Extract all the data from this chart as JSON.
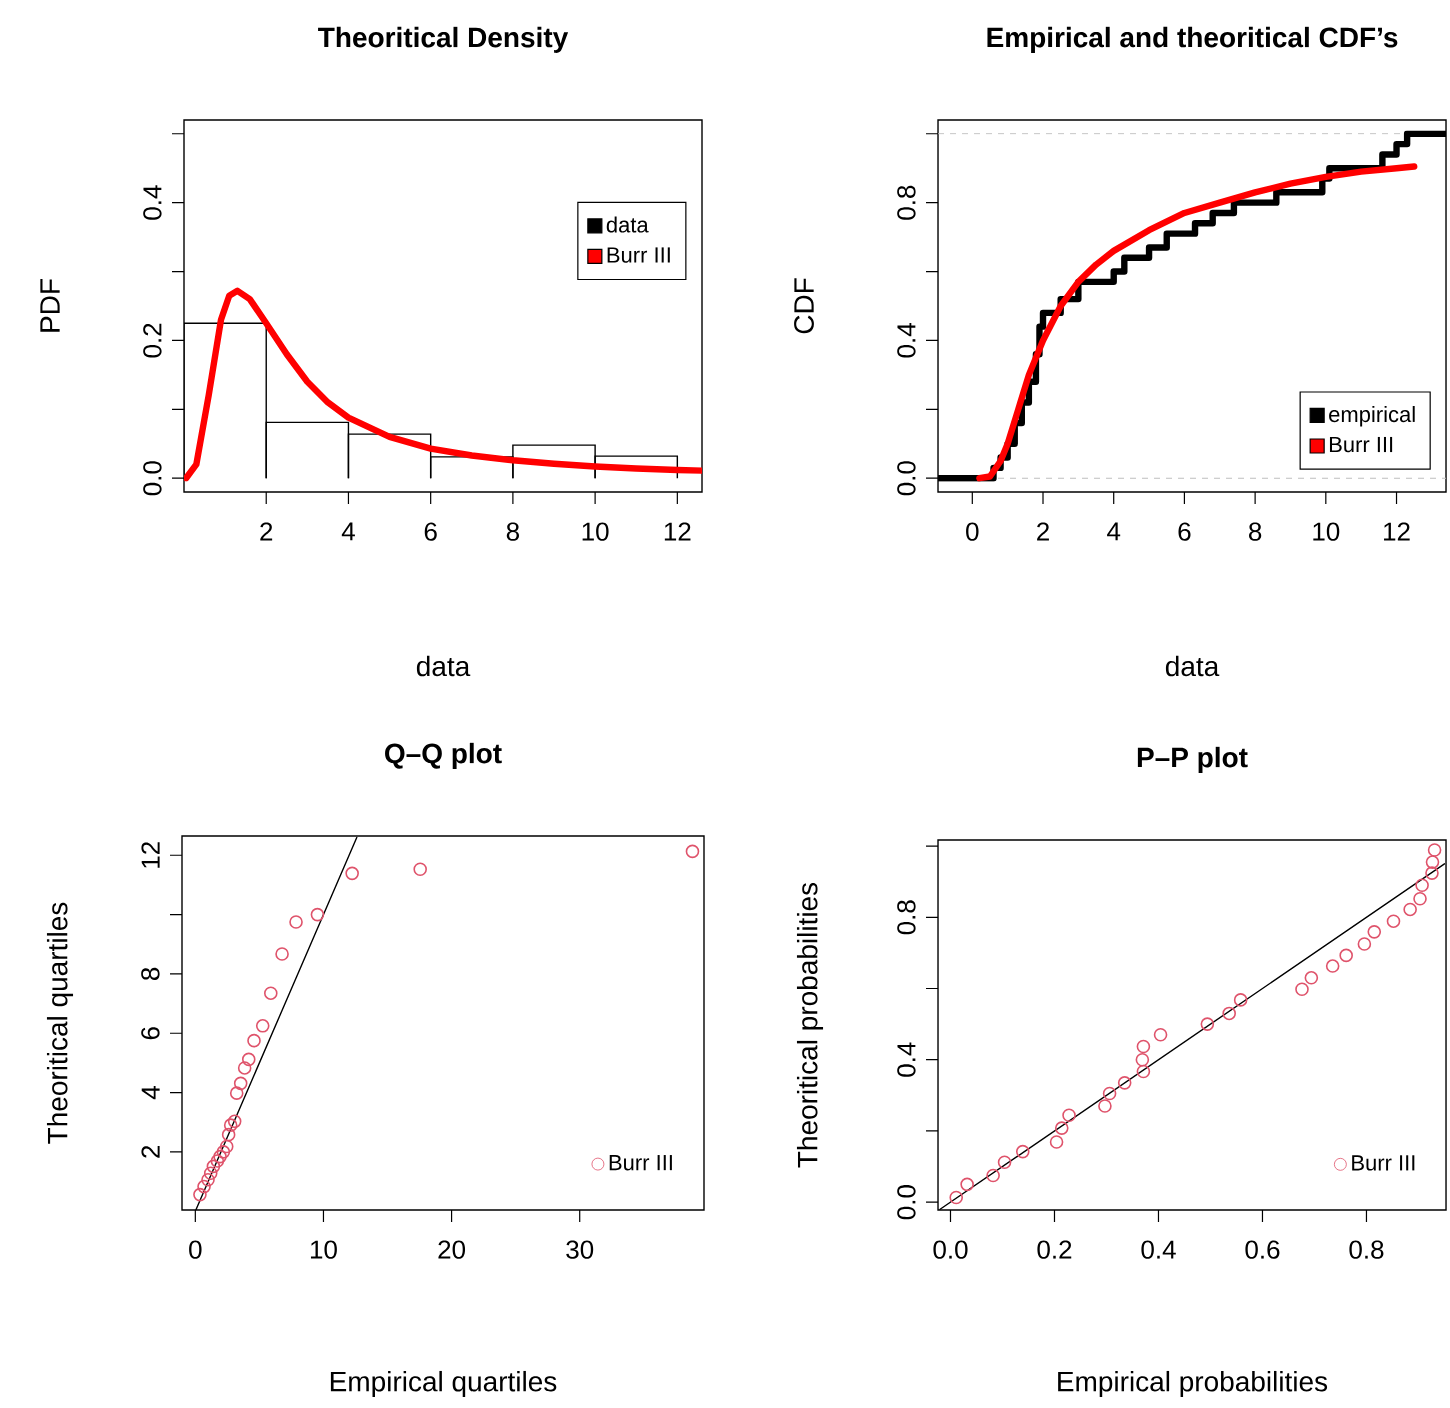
{
  "chart_data": [
    {
      "type": "histogram",
      "title": "Theoritical Density",
      "xlabel": "data",
      "ylabel": "PDF",
      "xlim": [
        0,
        12.6
      ],
      "ylim": [
        -0.02,
        0.52
      ],
      "xticks": [
        2,
        4,
        6,
        8,
        10,
        12
      ],
      "yticks": [
        {
          "value": 0,
          "label": "0.0"
        },
        {
          "value": 0.1,
          "label": null
        },
        0.2,
        {
          "value": 0.3,
          "label": null
        },
        0.4,
        {
          "value": 0.5,
          "label": null
        }
      ],
      "legend": "top right",
      "series": [
        {
          "name": "data",
          "type": "histogram",
          "color": "#000000",
          "bins": [
            0,
            2,
            4,
            6,
            8,
            10,
            12
          ],
          "values": [
            0.225,
            0.081,
            0.064,
            0.031,
            0.048,
            0.032
          ]
        },
        {
          "name": "Burr III",
          "type": "line",
          "color": "#ff0000",
          "x": [
            0.05,
            0.3,
            0.6,
            0.9,
            1.1,
            1.3,
            1.6,
            2,
            2.5,
            3,
            3.5,
            4,
            5,
            6,
            7,
            8,
            9,
            10,
            11,
            12,
            12.6
          ],
          "values": [
            0,
            0.02,
            0.12,
            0.23,
            0.265,
            0.272,
            0.26,
            0.225,
            0.18,
            0.14,
            0.11,
            0.088,
            0.06,
            0.043,
            0.033,
            0.026,
            0.021,
            0.017,
            0.014,
            0.012,
            0.011
          ]
        }
      ]
    },
    {
      "type": "step",
      "title": "Empirical and theoritical CDF’s",
      "xlabel": "data",
      "ylabel": "CDF",
      "xlim": [
        -0.97,
        13.4
      ],
      "ylim": [
        -0.04,
        1.04
      ],
      "xticks": [
        0,
        2,
        4,
        6,
        8,
        10,
        12
      ],
      "yticks": [
        {
          "value": 0,
          "label": "0.0"
        },
        {
          "value": 0.2,
          "label": null
        },
        0.4,
        {
          "value": 0.6,
          "label": null
        },
        0.8,
        {
          "value": 1,
          "label": null
        }
      ],
      "legend": "bottom right",
      "ref_lines": [
        {
          "axis": "y",
          "value": 0,
          "color": "#bebebe",
          "line_style": "dashed"
        },
        {
          "axis": "y",
          "value": 1,
          "color": "#bebebe",
          "line_style": "dashed"
        }
      ],
      "series": [
        {
          "name": "empirical",
          "type": "step",
          "color": "#000000",
          "x": [
            -0.97,
            0.5,
            0.6,
            0.8,
            1.0,
            1.2,
            1.4,
            1.6,
            1.8,
            1.9,
            2.0,
            2.5,
            3.0,
            4.0,
            4.3,
            5.0,
            5.5,
            6.3,
            6.8,
            7.4,
            8.6,
            9.9,
            10.1,
            11.5,
            11.6,
            12.0,
            12.3,
            13.4
          ],
          "values": [
            0,
            0,
            0.03,
            0.06,
            0.1,
            0.16,
            0.22,
            0.28,
            0.36,
            0.44,
            0.48,
            0.52,
            0.57,
            0.6,
            0.64,
            0.67,
            0.71,
            0.74,
            0.77,
            0.8,
            0.83,
            0.87,
            0.9,
            0.9,
            0.94,
            0.97,
            1,
            1
          ]
        },
        {
          "name": "Burr III",
          "type": "line",
          "color": "#ff0000",
          "x": [
            0.2,
            0.5,
            0.8,
            1,
            1.3,
            1.6,
            2,
            2.5,
            3,
            3.5,
            4,
            5,
            6,
            7,
            8,
            9,
            10,
            11,
            12,
            12.5
          ],
          "values": [
            0,
            0.005,
            0.05,
            0.1,
            0.2,
            0.3,
            0.4,
            0.5,
            0.57,
            0.62,
            0.66,
            0.72,
            0.77,
            0.8,
            0.83,
            0.855,
            0.875,
            0.89,
            0.9,
            0.905
          ]
        }
      ]
    },
    {
      "type": "scatter",
      "title": "Q–Q plot",
      "xlabel": "Empirical quartiles",
      "ylabel": "Theoritical quartiles",
      "xlim": [
        -1.04,
        39.7
      ],
      "ylim": [
        0.04,
        12.65
      ],
      "xticks": [
        0,
        10,
        20,
        30
      ],
      "yticks": [
        2,
        4,
        6,
        8,
        {
          "value": 10,
          "label": null
        },
        12
      ],
      "legend": "bottom right",
      "marker": "circle",
      "series": [
        {
          "name": "Burr III",
          "color": "#df536b",
          "x": [
            38.8,
            17.55,
            12.24,
            9.53,
            7.86,
            6.77,
            5.89,
            5.26,
            4.58,
            4.17,
            3.85,
            3.54,
            3.23,
            3.07,
            2.76,
            2.6,
            2.45,
            2.19,
            1.93,
            1.72,
            1.41,
            1.2,
            0.99,
            0.68,
            0.36
          ],
          "values": [
            12.13,
            11.53,
            11.39,
            10.0,
            9.75,
            8.67,
            7.35,
            6.25,
            5.75,
            5.12,
            4.83,
            4.31,
            3.98,
            3.03,
            2.9,
            2.58,
            2.18,
            2.0,
            1.84,
            1.69,
            1.51,
            1.28,
            1.06,
            0.83,
            0.56
          ]
        },
        {
          "type": "line",
          "color": "#000000",
          "marker": "none",
          "x": [
            0.05,
            12.6
          ],
          "values": [
            0.05,
            12.6
          ]
        }
      ]
    },
    {
      "type": "scatter",
      "title": "P–P plot",
      "xlabel": "Empirical probabilities",
      "ylabel": "Theoritical probabilities",
      "xlim": [
        -0.024,
        0.953
      ],
      "ylim": [
        -0.022,
        1.017
      ],
      "xticks": [
        {
          "value": 0,
          "label": "0.0"
        },
        0.2,
        0.4,
        0.6,
        0.8
      ],
      "yticks": [
        {
          "value": 0,
          "label": "0.0"
        },
        {
          "value": 0.2,
          "label": null
        },
        0.4,
        {
          "value": 0.6,
          "label": null
        },
        0.8,
        {
          "value": 1,
          "label": null
        }
      ],
      "legend": "bottom right",
      "marker": "circle",
      "series": [
        {
          "name": "Burr III",
          "color": "#df536b",
          "x": [
            0.011,
            0.032,
            0.082,
            0.104,
            0.139,
            0.204,
            0.214,
            0.228,
            0.297,
            0.306,
            0.335,
            0.371,
            0.369,
            0.371,
            0.404,
            0.494,
            0.536,
            0.558,
            0.676,
            0.694,
            0.735,
            0.761,
            0.796,
            0.815,
            0.852,
            0.884,
            0.903,
            0.907,
            0.926,
            0.927,
            0.931
          ],
          "values": [
            0.013,
            0.05,
            0.075,
            0.112,
            0.142,
            0.169,
            0.208,
            0.244,
            0.27,
            0.305,
            0.335,
            0.367,
            0.4,
            0.437,
            0.47,
            0.5,
            0.53,
            0.568,
            0.598,
            0.63,
            0.663,
            0.693,
            0.725,
            0.759,
            0.789,
            0.822,
            0.852,
            0.89,
            0.924,
            0.955,
            0.989
          ]
        },
        {
          "type": "line",
          "color": "#000000",
          "marker": "none",
          "x": [
            -0.02,
            0.95
          ],
          "values": [
            -0.02,
            0.95
          ]
        }
      ]
    }
  ]
}
